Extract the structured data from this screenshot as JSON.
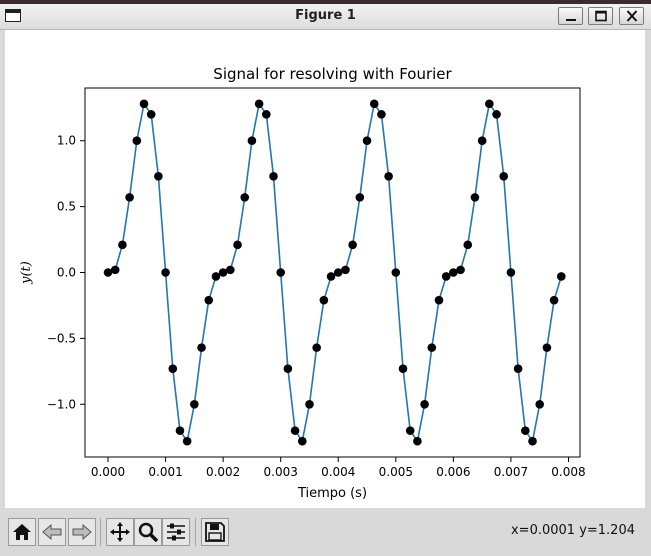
{
  "window": {
    "title": "Figure 1",
    "minimize_icon": "minimize-icon",
    "maximize_icon": "maximize-icon",
    "close_icon": "close-icon"
  },
  "toolbar": {
    "buttons": [
      "home-icon",
      "back-icon",
      "forward-icon",
      "pan-icon",
      "zoom-icon",
      "configure-subplots-icon",
      "save-icon"
    ],
    "coords": "x=0.0001 y=1.204"
  },
  "chart_data": {
    "type": "line",
    "title": "Signal for resolving with Fourier",
    "xlabel": "Tiempo (s)",
    "ylabel": "y(t)",
    "xlim": [
      -0.0004,
      0.0082
    ],
    "ylim": [
      -1.4,
      1.4
    ],
    "x_ticks": [
      0.0,
      0.001,
      0.002,
      0.003,
      0.004,
      0.005,
      0.006,
      0.007,
      0.008
    ],
    "x_tick_labels": [
      "0.000",
      "0.001",
      "0.002",
      "0.003",
      "0.004",
      "0.005",
      "0.006",
      "0.007",
      "0.008"
    ],
    "y_ticks": [
      -1.0,
      -0.5,
      0.0,
      0.5,
      1.0
    ],
    "y_tick_labels": [
      "−1.0",
      "−0.5",
      "0.0",
      "0.5",
      "1.0"
    ],
    "grid": false,
    "line_color": "#1f77b4",
    "marker_color": "#000000",
    "x": [
      0.0,
      0.000125,
      0.00025,
      0.000375,
      0.0005,
      0.000625,
      0.00075,
      0.000875,
      0.001,
      0.001125,
      0.00125,
      0.001375,
      0.0015,
      0.001625,
      0.00175,
      0.001875,
      0.002,
      0.002125,
      0.00225,
      0.002375,
      0.0025,
      0.002625,
      0.00275,
      0.002875,
      0.003,
      0.003125,
      0.00325,
      0.003375,
      0.0035,
      0.003625,
      0.00375,
      0.003875,
      0.004,
      0.004125,
      0.00425,
      0.004375,
      0.0045,
      0.004625,
      0.00475,
      0.004875,
      0.005,
      0.005125,
      0.00525,
      0.005375,
      0.0055,
      0.005625,
      0.00575,
      0.005875,
      0.006,
      0.006125,
      0.00625,
      0.006375,
      0.0065,
      0.006625,
      0.00675,
      0.006875,
      0.007,
      0.007125,
      0.00725,
      0.007375,
      0.0075,
      0.007625,
      0.00775,
      0.007875
    ],
    "y": [
      0.0,
      0.02,
      0.21,
      0.57,
      1.0,
      1.28,
      1.2,
      0.73,
      0.0,
      -0.73,
      -1.2,
      -1.28,
      -1.0,
      -0.57,
      -0.21,
      -0.03,
      0.0,
      0.02,
      0.21,
      0.57,
      1.0,
      1.28,
      1.2,
      0.73,
      0.0,
      -0.73,
      -1.2,
      -1.28,
      -1.0,
      -0.57,
      -0.21,
      -0.03,
      0.0,
      0.02,
      0.21,
      0.57,
      1.0,
      1.28,
      1.2,
      0.73,
      0.0,
      -0.73,
      -1.2,
      -1.28,
      -1.0,
      -0.57,
      -0.21,
      -0.03,
      0.0,
      0.02,
      0.21,
      0.57,
      1.0,
      1.28,
      1.2,
      0.73,
      0.0,
      -0.73,
      -1.2,
      -1.28,
      -1.0,
      -0.57,
      -0.21,
      -0.03
    ]
  }
}
